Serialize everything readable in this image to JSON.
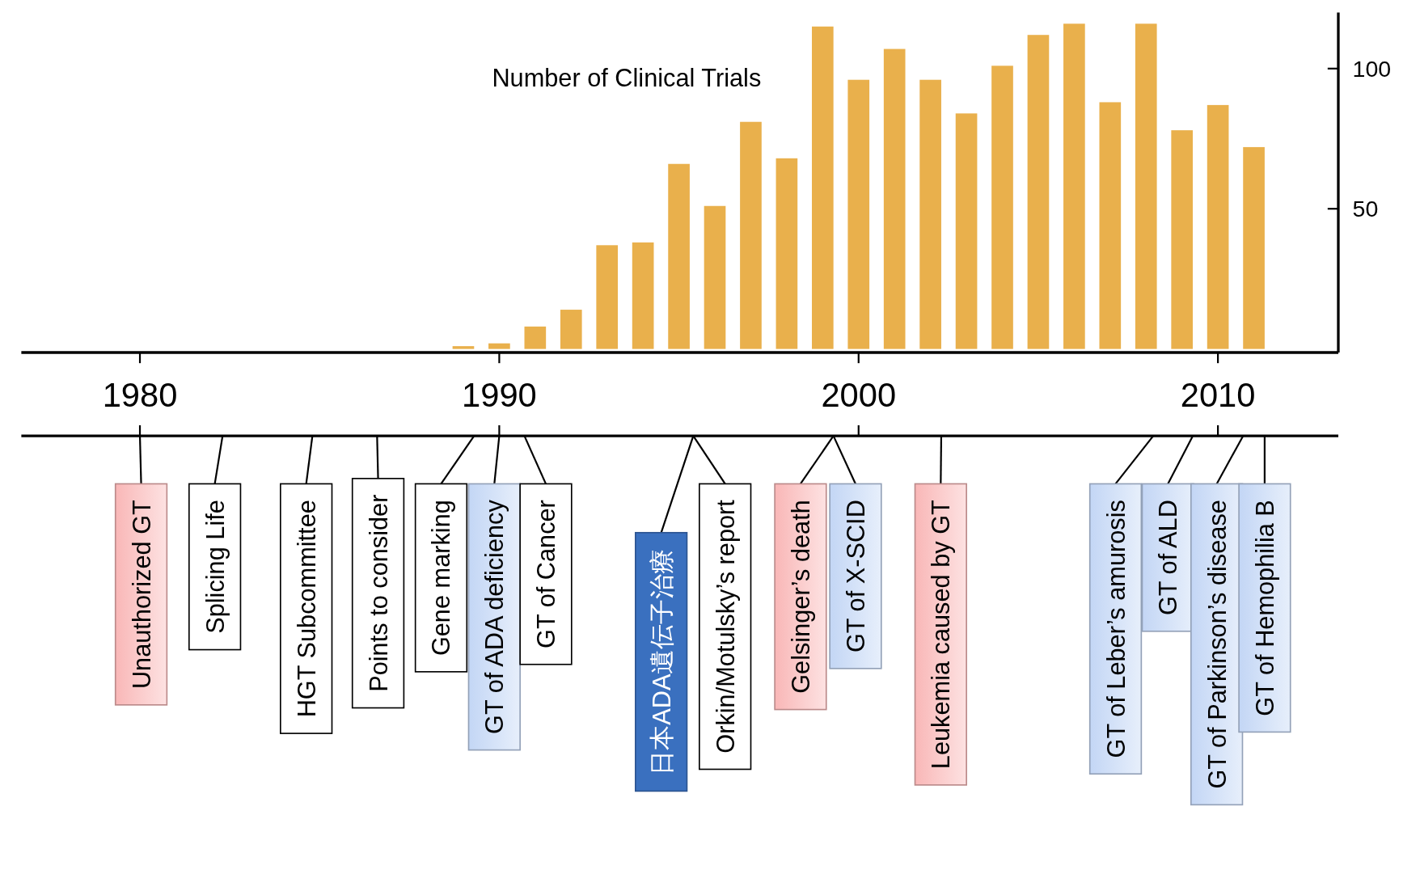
{
  "chart_data": {
    "type": "bar",
    "title": "Number of Clinical Trials",
    "x": [
      1989,
      1990,
      1991,
      1992,
      1993,
      1994,
      1995,
      1996,
      1997,
      1998,
      1999,
      2000,
      2001,
      2002,
      2003,
      2004,
      2005,
      2006,
      2007,
      2008,
      2009,
      2010,
      2011
    ],
    "values": [
      1,
      2,
      8,
      14,
      37,
      38,
      66,
      51,
      81,
      68,
      115,
      96,
      107,
      96,
      84,
      101,
      112,
      116,
      88,
      116,
      78,
      87,
      72
    ],
    "color": "#e9b04c",
    "xlim": [
      1976.7,
      2013.35
    ],
    "xticks": [
      1980,
      1990,
      2000,
      2010
    ],
    "ylim": [
      0,
      120
    ],
    "yticks": [
      50,
      100
    ],
    "annotations": [
      "Unauthorized GT",
      "Splicing Life",
      "HGT Subcommittee",
      "Points to consider",
      "Gene marking",
      "GT of ADA deficiency",
      "GT of Cancer",
      "日本ADA遺伝子治療",
      "Orkin/Motulsky’s report",
      "Gelsinger’s death",
      "GT of X-SCID",
      "Leukemia caused by GT",
      "GT of Leber’s amurosis",
      "GT of ALD",
      "GT of Parkinson’s disease",
      "GT of Hemophilia B"
    ]
  }
}
